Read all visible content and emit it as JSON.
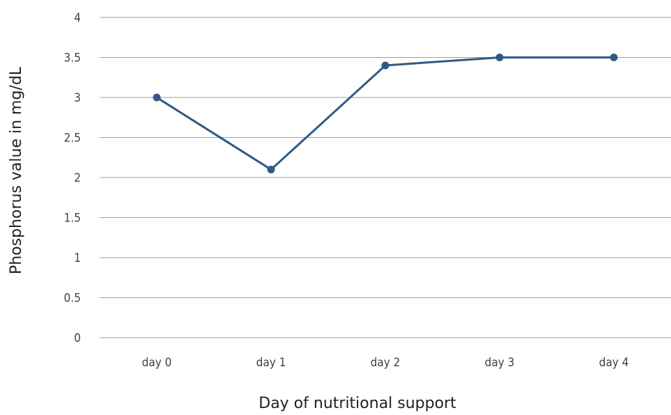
{
  "chart_data": {
    "type": "line",
    "title": "",
    "xlabel": "Day of nutritional support",
    "ylabel": "Phosphorus value in mg/dL",
    "categories": [
      "day 0",
      "day 1",
      "day 2",
      "day 3",
      "day 4"
    ],
    "series": [
      {
        "values": [
          3.0,
          2.1,
          3.4,
          3.5,
          3.5
        ],
        "color": "#2e5a85"
      }
    ],
    "ylim": [
      0,
      4
    ],
    "yticks": [
      "0",
      "0.5",
      "1",
      "1.5",
      "2",
      "2.5",
      "3",
      "3.5",
      "4"
    ],
    "grid": true,
    "legend": "none",
    "gridline_color": "#9e9e9e"
  }
}
